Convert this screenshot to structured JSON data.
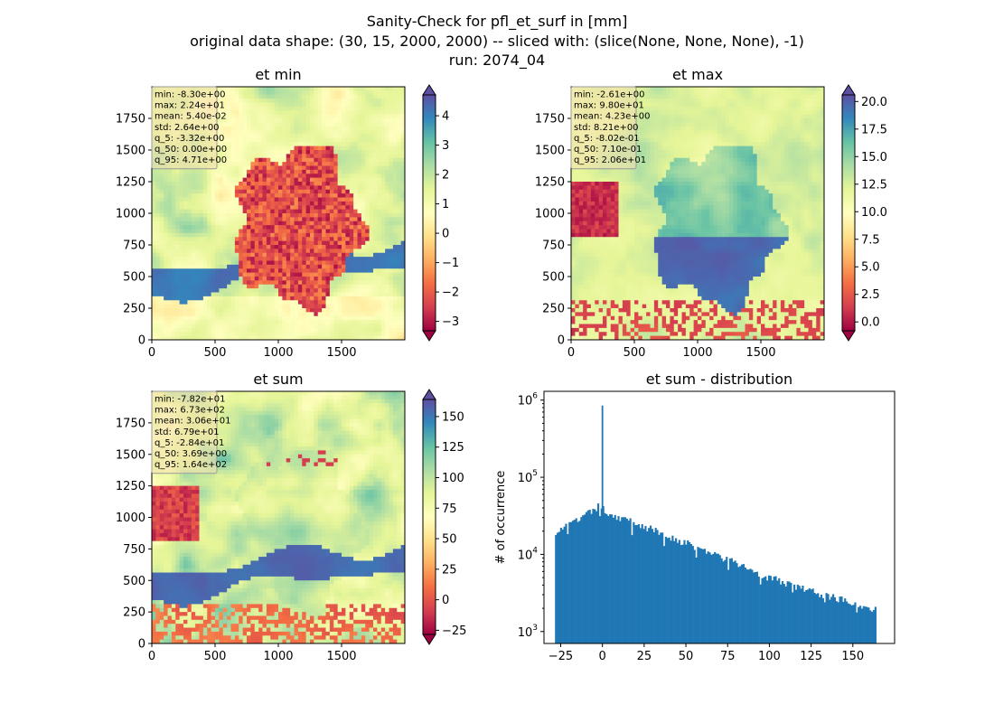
{
  "figure": {
    "title_lines": [
      "Sanity-Check for pfl_et_surf in [mm]",
      "original data shape: (30, 15, 2000, 2000) -- sliced with: (slice(None, None, None), -1)",
      "run: 2074_04"
    ]
  },
  "chart_data": [
    {
      "type": "heatmap",
      "title": "et min",
      "x_ticks": [
        "0",
        "500",
        "1000",
        "1500"
      ],
      "y_ticks": [
        "0",
        "250",
        "500",
        "750",
        "1000",
        "1250",
        "1500",
        "1750"
      ],
      "xlim": [
        0,
        2000
      ],
      "ylim": [
        0,
        2000
      ],
      "colorbar": {
        "cmap": "Spectral",
        "range": [
          -3.32,
          4.71
        ],
        "extend": "both",
        "ticks": [
          "4",
          "3",
          "2",
          "1",
          "0",
          "−1",
          "−2",
          "−3"
        ],
        "tick_values": [
          4,
          3,
          2,
          1,
          0,
          -1,
          -2,
          -3
        ]
      },
      "stats": [
        "min: -8.30e+00",
        "max: 2.24e+01",
        "mean: 5.40e-02",
        "std: 2.64e+00",
        "q_5: -3.32e+00",
        "q_50: 0.00e+00",
        "q_95: 4.71e+00"
      ]
    },
    {
      "type": "heatmap",
      "title": "et max",
      "x_ticks": [
        "0",
        "500",
        "1000",
        "1500"
      ],
      "y_ticks": [
        "0",
        "250",
        "500",
        "750",
        "1000",
        "1250",
        "1500",
        "1750"
      ],
      "xlim": [
        0,
        2000
      ],
      "ylim": [
        0,
        2000
      ],
      "colorbar": {
        "cmap": "Spectral",
        "range": [
          -0.802,
          20.6
        ],
        "extend": "both",
        "ticks": [
          "20.0",
          "17.5",
          "15.0",
          "12.5",
          "10.0",
          "7.5",
          "5.0",
          "2.5",
          "0.0"
        ],
        "tick_values": [
          20,
          17.5,
          15,
          12.5,
          10,
          7.5,
          5,
          2.5,
          0
        ]
      },
      "stats": [
        "min: -2.61e+00",
        "max: 9.80e+01",
        "mean: 4.23e+00",
        "std: 8.21e+00",
        "q_5: -8.02e-01",
        "q_50: 7.10e-01",
        "q_95: 2.06e+01"
      ]
    },
    {
      "type": "heatmap",
      "title": "et sum",
      "x_ticks": [
        "0",
        "500",
        "1000",
        "1500"
      ],
      "y_ticks": [
        "0",
        "250",
        "500",
        "750",
        "1000",
        "1250",
        "1500",
        "1750"
      ],
      "xlim": [
        0,
        2000
      ],
      "ylim": [
        0,
        2000
      ],
      "colorbar": {
        "cmap": "Spectral",
        "range": [
          -28.4,
          164
        ],
        "extend": "both",
        "ticks": [
          "150",
          "125",
          "100",
          "75",
          "50",
          "25",
          "0",
          "−25"
        ],
        "tick_values": [
          150,
          125,
          100,
          75,
          50,
          25,
          0,
          -25
        ]
      },
      "stats": [
        "min: -7.82e+01",
        "max: 6.73e+02",
        "mean: 3.06e+01",
        "std: 6.79e+01",
        "q_5: -2.84e+01",
        "q_50: 3.69e+00",
        "q_95: 1.64e+02"
      ]
    },
    {
      "type": "bar",
      "title": "et sum - distribution",
      "ylabel": "# of occurrence",
      "xlabel": "",
      "yscale": "log",
      "ylim": [
        700,
        1300000
      ],
      "xlim": [
        -35,
        175
      ],
      "color": "#1f77b4",
      "x_ticks": [
        -25,
        0,
        25,
        50,
        75,
        100,
        125,
        150
      ],
      "x_tick_labels": [
        "−25",
        "0",
        "25",
        "50",
        "75",
        "100",
        "125",
        "150"
      ],
      "y_ticks": [
        1000,
        10000,
        100000,
        1000000
      ],
      "y_tick_labels": [
        [
          "10",
          "3"
        ],
        [
          "10",
          "4"
        ],
        [
          "10",
          "5"
        ],
        [
          "10",
          "6"
        ]
      ],
      "bin_range": [
        -28.4,
        164
      ],
      "spike": {
        "x": 0,
        "y": 850000
      },
      "hist_trend": [
        [
          -28,
          20000
        ],
        [
          -20,
          24000
        ],
        [
          -10,
          32000
        ],
        [
          -2,
          42000
        ],
        [
          5,
          33000
        ],
        [
          25,
          23000
        ],
        [
          50,
          14000
        ],
        [
          75,
          8500
        ],
        [
          100,
          5000
        ],
        [
          125,
          3300
        ],
        [
          150,
          2400
        ],
        [
          164,
          1900
        ]
      ]
    }
  ]
}
